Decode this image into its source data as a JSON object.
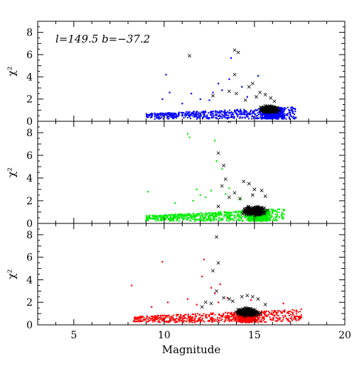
{
  "chart_data": {
    "type": "scatter",
    "shared_x": {
      "label": "Magnitude",
      "range": [
        3,
        20
      ],
      "ticks": [
        5,
        10,
        15,
        20
      ],
      "tick_labels": [
        "5",
        "10",
        "15",
        "20"
      ]
    },
    "panels": [
      {
        "id": "top",
        "annotation": "l=149.5 b=−37.2",
        "ylabel": "χ²",
        "ylim": [
          0,
          9
        ],
        "yticks": [
          0,
          2,
          4,
          6,
          8
        ],
        "ytick_labels": [
          "0",
          "2",
          "4",
          "6",
          "8"
        ],
        "dot_color": "#0000ff",
        "cross_color": "#000000",
        "dots": {
          "cloud": {
            "x": [
              9.0,
              17.3
            ],
            "y": [
              0.2,
              1.3
            ],
            "n": 1400,
            "dense_peak": 16.0
          },
          "outliers": [
            [
              9.9,
              2.0
            ],
            [
              10.1,
              4.2
            ],
            [
              10.3,
              2.6
            ],
            [
              11.5,
              2.5
            ],
            [
              12.0,
              2.0
            ],
            [
              12.7,
              2.6
            ],
            [
              13.2,
              2.8
            ],
            [
              13.6,
              3.8
            ],
            [
              13.7,
              5.7
            ],
            [
              14.3,
              3.1
            ],
            [
              13.0,
              3.4
            ],
            [
              12.5,
              1.9
            ],
            [
              11.0,
              1.6
            ],
            [
              15.2,
              4.1
            ],
            [
              14.6,
              2.2
            ]
          ]
        },
        "crosses": {
          "cloud": {
            "x": [
              15.0,
              16.6
            ],
            "y": [
              0.7,
              1.5
            ],
            "n": 230
          },
          "outliers": [
            [
              11.4,
              5.9
            ],
            [
              12.7,
              2.3
            ],
            [
              13.6,
              2.7
            ],
            [
              13.9,
              6.4
            ],
            [
              14.1,
              6.2
            ],
            [
              13.9,
              4.2
            ],
            [
              14.0,
              2.5
            ],
            [
              14.7,
              3.1
            ],
            [
              14.9,
              3.4
            ],
            [
              15.3,
              2.6
            ],
            [
              15.6,
              2.4
            ],
            [
              15.9,
              2.1
            ],
            [
              14.5,
              1.9
            ],
            [
              15.1,
              2.2
            ],
            [
              16.1,
              1.8
            ]
          ]
        }
      },
      {
        "id": "middle",
        "annotation": "",
        "ylabel": "χ²",
        "ylim": [
          0,
          9
        ],
        "yticks": [
          0,
          2,
          4,
          6,
          8
        ],
        "ytick_labels": [
          "0",
          "2",
          "4",
          "6",
          "8"
        ],
        "dot_color": "#00ee00",
        "cross_color": "#000000",
        "dots": {
          "cloud": {
            "x": [
              9.0,
              16.7
            ],
            "y": [
              0.2,
              1.3
            ],
            "n": 1400,
            "dense_peak": 15.2
          },
          "outliers": [
            [
              9.1,
              2.8
            ],
            [
              11.3,
              7.9
            ],
            [
              11.4,
              7.6
            ],
            [
              11.8,
              3.0
            ],
            [
              12.0,
              2.5
            ],
            [
              11.6,
              2.0
            ],
            [
              12.3,
              2.3
            ],
            [
              12.8,
              7.3
            ],
            [
              13.2,
              4.8
            ],
            [
              13.6,
              3.1
            ],
            [
              12.9,
              5.5
            ],
            [
              13.4,
              2.6
            ],
            [
              12.6,
              2.9
            ],
            [
              10.6,
              1.8
            ],
            [
              14.2,
              2.1
            ]
          ]
        },
        "crosses": {
          "cloud": {
            "x": [
              14.0,
              16.0
            ],
            "y": [
              0.6,
              1.6
            ],
            "n": 230
          },
          "outliers": [
            [
              13.6,
              9.0
            ],
            [
              13.0,
              6.2
            ],
            [
              13.3,
              5.1
            ],
            [
              13.4,
              3.9
            ],
            [
              13.2,
              3.3
            ],
            [
              13.9,
              2.7
            ],
            [
              13.6,
              2.3
            ],
            [
              14.4,
              3.7
            ],
            [
              14.7,
              3.5
            ],
            [
              15.0,
              3.0
            ],
            [
              15.4,
              2.9
            ],
            [
              14.2,
              2.2
            ],
            [
              13.0,
              1.5
            ],
            [
              15.6,
              2.4
            ],
            [
              14.9,
              2.5
            ]
          ]
        }
      },
      {
        "id": "bottom",
        "annotation": "",
        "ylabel": "χ²",
        "ylim": [
          0,
          9
        ],
        "yticks": [
          0,
          2,
          4,
          6,
          8
        ],
        "ytick_labels": [
          "0",
          "2",
          "4",
          "6",
          "8"
        ],
        "dot_color": "#ff0000",
        "cross_color": "#000000",
        "dots": {
          "cloud": {
            "x": [
              8.3,
              17.6
            ],
            "y": [
              0.2,
              1.4
            ],
            "n": 1400,
            "dense_peak": 14.6
          },
          "outliers": [
            [
              8.2,
              3.5
            ],
            [
              9.9,
              5.6
            ],
            [
              12.2,
              5.8
            ],
            [
              12.1,
              4.3
            ],
            [
              12.6,
              3.3
            ],
            [
              13.0,
              2.0
            ],
            [
              13.5,
              2.4
            ],
            [
              12.8,
              2.8
            ],
            [
              11.3,
              2.3
            ],
            [
              10.2,
              2.0
            ],
            [
              11.8,
              1.8
            ],
            [
              13.1,
              3.6
            ],
            [
              9.3,
              1.6
            ],
            [
              14.8,
              2.2
            ],
            [
              16.6,
              1.9
            ]
          ]
        },
        "crosses": {
          "cloud": {
            "x": [
              13.6,
              15.6
            ],
            "y": [
              0.7,
              1.6
            ],
            "n": 230
          },
          "outliers": [
            [
              12.9,
              7.8
            ],
            [
              13.0,
              5.5
            ],
            [
              12.7,
              4.8
            ],
            [
              12.9,
              3.0
            ],
            [
              12.3,
              2.0
            ],
            [
              13.3,
              2.4
            ],
            [
              13.6,
              2.3
            ],
            [
              14.3,
              2.5
            ],
            [
              14.6,
              2.6
            ],
            [
              14.9,
              2.5
            ],
            [
              15.2,
              2.3
            ],
            [
              12.6,
              1.9
            ],
            [
              13.8,
              2.1
            ],
            [
              15.6,
              1.8
            ],
            [
              12.1,
              1.6
            ]
          ]
        }
      }
    ]
  }
}
